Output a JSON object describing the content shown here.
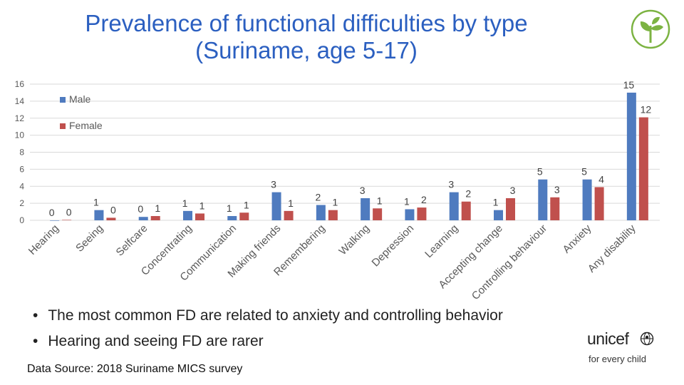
{
  "slide": {
    "title": "Prevalence of functional difficulties by type (Suriname, age 5-17)",
    "bullets": [
      "The most common FD are related to anxiety and controlling behavior",
      "Hearing and seeing FD are rarer"
    ],
    "source": "Data Source: 2018 Suriname MICS survey",
    "logo": {
      "name": "unicef",
      "tagline": "for every child"
    }
  },
  "colors": {
    "male": "#4f7bbf",
    "female": "#c0504d",
    "title": "#2b5fc0",
    "sprout": "#7cb342"
  },
  "chart_data": {
    "type": "bar",
    "categories": [
      "Hearing",
      "Seeing",
      "Selfcare",
      "Concentrating",
      "Communication",
      "Making friends",
      "Remembering",
      "Walking",
      "Depression",
      "Learning",
      "Accepting change",
      "Controlling behaviour",
      "Anxiety",
      "Any disability"
    ],
    "series": [
      {
        "name": "Male",
        "values": [
          0.0,
          1.2,
          0.4,
          1.1,
          0.5,
          3.3,
          1.8,
          2.6,
          1.3,
          3.3,
          1.2,
          4.8,
          4.8,
          15.0
        ],
        "labels": [
          "0",
          "1",
          "0",
          "1",
          "1",
          "3",
          "2",
          "3",
          "1",
          "3",
          "1",
          "5",
          "5",
          "15"
        ]
      },
      {
        "name": "Female",
        "values": [
          0.05,
          0.3,
          0.5,
          0.8,
          0.9,
          1.1,
          1.2,
          1.4,
          1.5,
          2.2,
          2.6,
          2.7,
          3.9,
          12.1
        ],
        "labels": [
          "0",
          "0",
          "1",
          "1",
          "1",
          "1",
          "1",
          "1",
          "2",
          "2",
          "3",
          "3",
          "4",
          "12"
        ]
      }
    ],
    "y_ticks": [
      "0",
      "2",
      "4",
      "6",
      "8",
      "10",
      "12",
      "14",
      "16"
    ],
    "ylim": [
      0,
      16
    ],
    "grid": true,
    "legend": "top-left"
  }
}
